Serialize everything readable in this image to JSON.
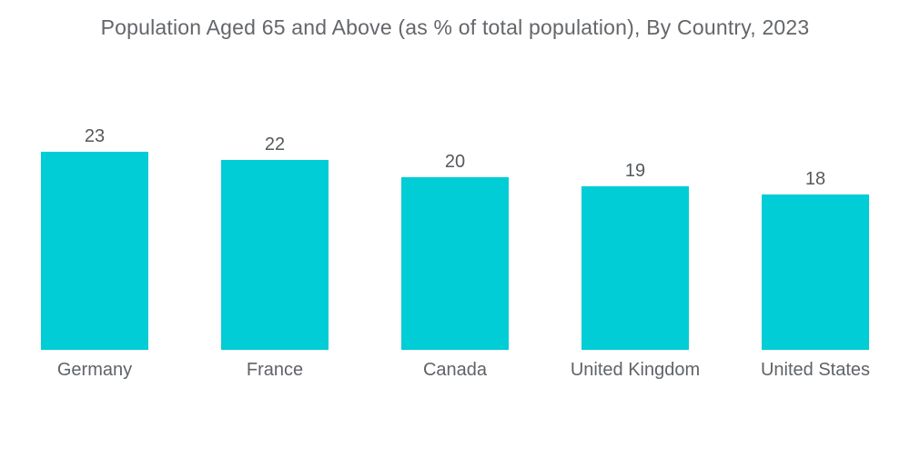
{
  "title": "Population Aged 65 and Above (as % of total population), By Country, 2023",
  "colors": {
    "bar": "#00CDD6",
    "title_text": "#63666A",
    "value_text": "#55585C",
    "label_text": "#5F6368",
    "background": "#FFFFFF"
  },
  "chart_data": {
    "type": "bar",
    "title": "Population Aged 65 and Above (as % of total population), By Country, 2023",
    "categories": [
      "Germany",
      "France",
      "Canada",
      "United Kingdom",
      "United States"
    ],
    "values": [
      23,
      22,
      20,
      19,
      18
    ],
    "value_labels": [
      "23",
      "22",
      "20",
      "19",
      "18"
    ],
    "xlabel": "",
    "ylabel": "",
    "ylim": [
      0,
      23
    ],
    "unit": "% of total population",
    "grid": false,
    "axes_shown": false,
    "legend_position": "none",
    "bar_color": "#00CDD6",
    "orientation": "vertical"
  }
}
